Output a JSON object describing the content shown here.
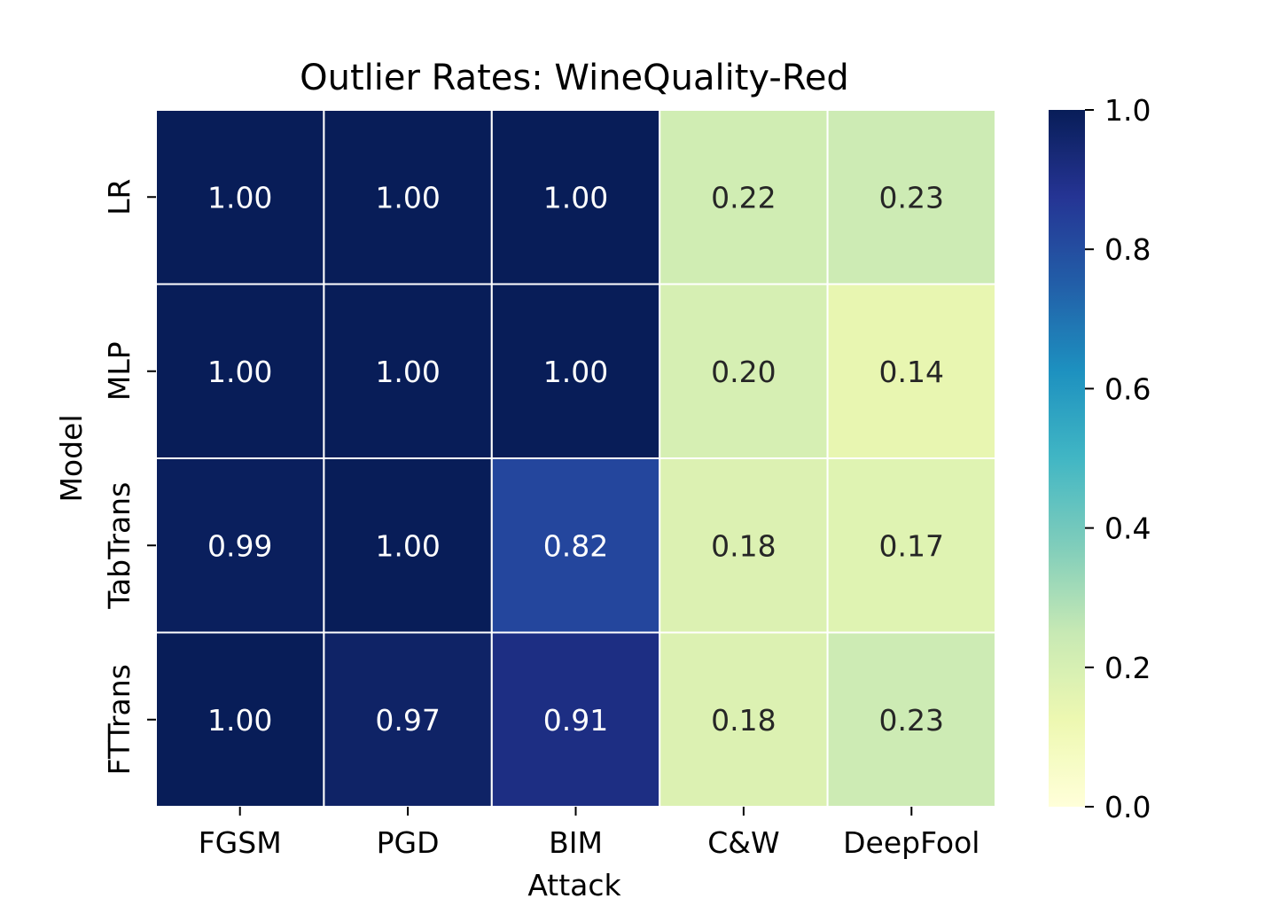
{
  "chart_data": {
    "type": "heatmap",
    "title": "Outlier Rates: WineQuality-Red",
    "xlabel": "Attack",
    "ylabel": "Model",
    "x_categories": [
      "FGSM",
      "PGD",
      "BIM",
      "C&W",
      "DeepFool"
    ],
    "y_categories": [
      "LR",
      "MLP",
      "TabTrans",
      "FTTrans"
    ],
    "values": [
      [
        1.0,
        1.0,
        1.0,
        0.22,
        0.23
      ],
      [
        1.0,
        1.0,
        1.0,
        0.2,
        0.14
      ],
      [
        0.99,
        1.0,
        0.82,
        0.18,
        0.17
      ],
      [
        1.0,
        0.97,
        0.91,
        0.18,
        0.23
      ]
    ],
    "value_format": "0.00",
    "colormap": "YlGnBu",
    "vmin": 0.0,
    "vmax": 1.0,
    "colorbar_ticks": [
      0.0,
      0.2,
      0.4,
      0.6,
      0.8,
      1.0
    ],
    "colorbar_tick_labels": [
      "0.0",
      "0.2",
      "0.4",
      "0.6",
      "0.8",
      "1.0"
    ],
    "cell_border_color": "#ffffff",
    "annotation_light_color": "#ffffff",
    "annotation_dark_color": "#262626"
  }
}
